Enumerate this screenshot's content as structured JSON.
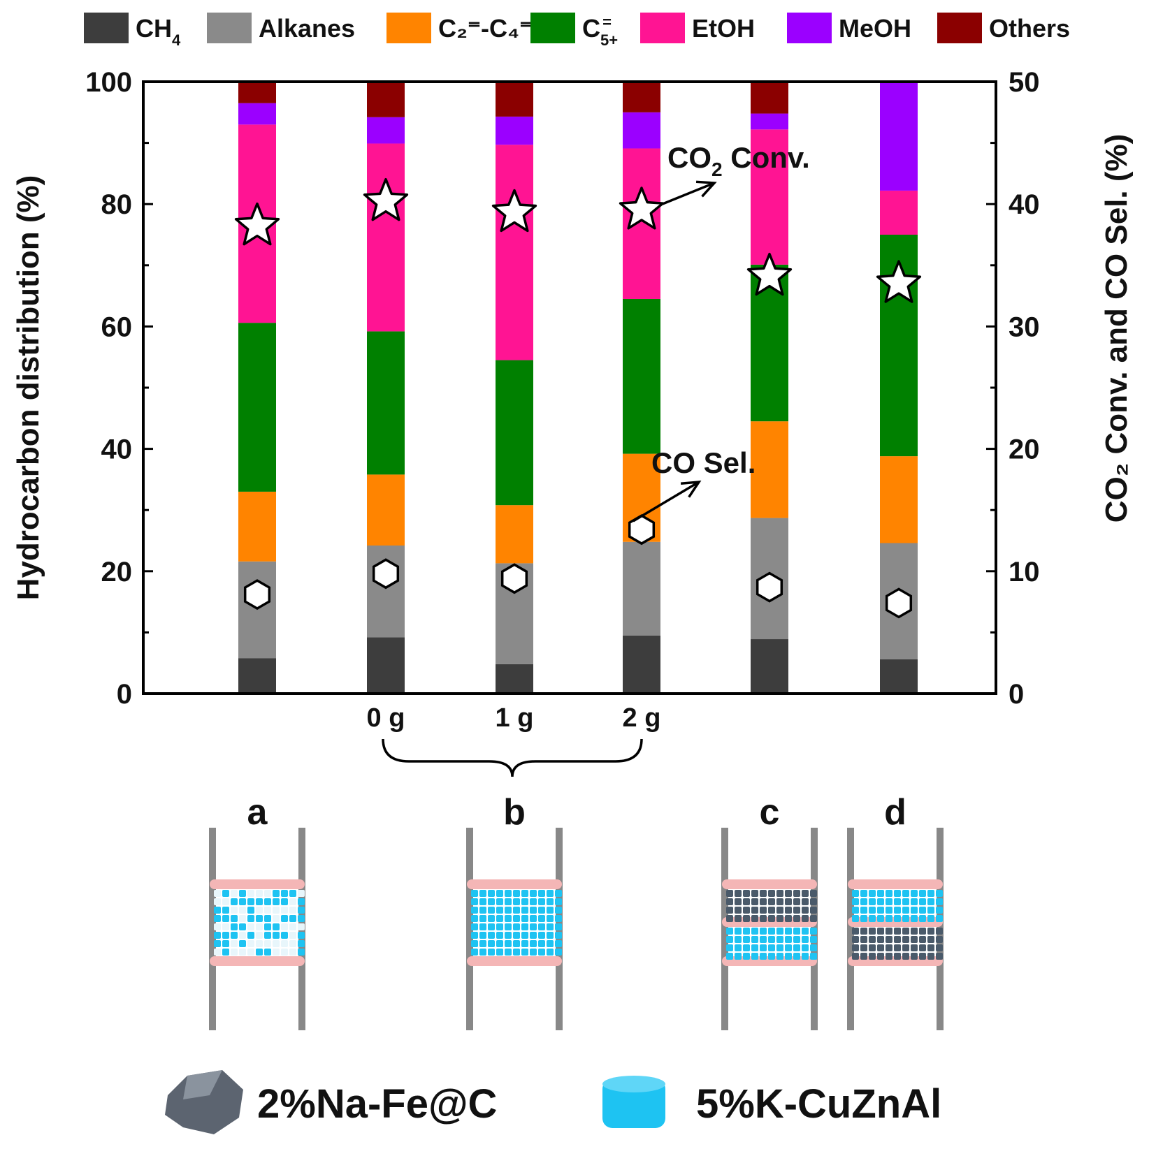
{
  "chart_data": {
    "type": "bar",
    "stacked": true,
    "categories": [
      "a",
      "0 g",
      "1 g",
      "2 g",
      "c",
      "d"
    ],
    "tick_labels": [
      "",
      "0 g",
      "1 g",
      "2 g",
      "",
      ""
    ],
    "series": [
      {
        "name": "CH4",
        "label_main": "CH",
        "label_sub": "4",
        "color": "#3d3d3d",
        "values": [
          5.8,
          9.2,
          4.8,
          9.5,
          8.9,
          5.6
        ]
      },
      {
        "name": "Alkanes",
        "label_main": "Alkanes",
        "label_sub": "",
        "color": "#8a8a8a",
        "values": [
          15.8,
          15.0,
          16.5,
          15.3,
          19.8,
          19.0
        ]
      },
      {
        "name": "C2=-C4=",
        "label_main": "C₂⁼-C₄⁼",
        "label_sub": "",
        "color": "#ff8400",
        "values": [
          11.4,
          11.6,
          9.5,
          14.4,
          15.8,
          14.2
        ]
      },
      {
        "name": "C5+=",
        "label_main": "C",
        "label_sub": "5+",
        "label_sup": "=",
        "color": "#008000",
        "values": [
          27.6,
          23.4,
          23.7,
          25.3,
          25.6,
          36.2
        ]
      },
      {
        "name": "EtOH",
        "label_main": "EtOH",
        "label_sub": "",
        "color": "#ff1493",
        "values": [
          32.4,
          30.7,
          35.2,
          24.6,
          22.1,
          7.2
        ]
      },
      {
        "name": "MeOH",
        "label_main": "MeOH",
        "label_sub": "",
        "color": "#9b00ff",
        "values": [
          3.5,
          4.3,
          4.6,
          5.9,
          2.6,
          17.8
        ]
      },
      {
        "name": "Others",
        "label_main": "Others",
        "label_sub": "",
        "color": "#8b0000",
        "values": [
          3.5,
          5.8,
          5.7,
          5.0,
          5.2,
          0.0
        ]
      }
    ],
    "co2_conversion": [
      38.2,
      40.2,
      39.3,
      39.5,
      34.1,
      33.5
    ],
    "co_selectivity": [
      8.1,
      9.8,
      9.4,
      13.4,
      8.7,
      7.4
    ],
    "ylabel_left": "Hydrocarbon distribution (%)",
    "ylabel_right": "CO₂ Conv. and CO Sel. (%)",
    "ylim_left": [
      0,
      100
    ],
    "ylim_right": [
      0,
      50
    ],
    "yticks_left": [
      0,
      20,
      40,
      60,
      80,
      100
    ],
    "yticks_right": [
      0,
      10,
      20,
      30,
      40,
      50
    ],
    "annotations": {
      "co2_conv_main": "CO",
      "co2_conv_sub": "2",
      "co2_conv_rest": " Conv.",
      "co_sel": "CO Sel."
    },
    "group_letters": [
      "a",
      "b",
      "c",
      "d"
    ],
    "catalysts": [
      "2%Na-Fe@C",
      "5%K-CuZnAl"
    ]
  }
}
